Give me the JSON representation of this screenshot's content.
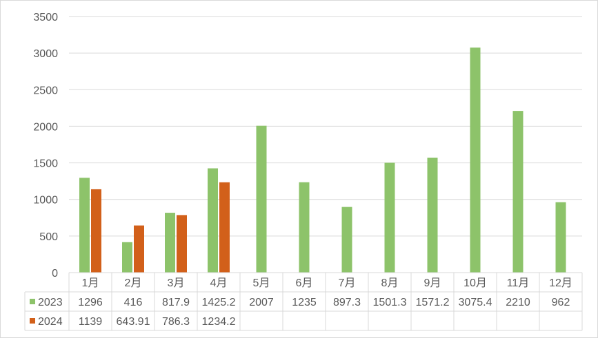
{
  "chart_data": {
    "type": "bar",
    "categories": [
      "1月",
      "2月",
      "3月",
      "4月",
      "5月",
      "6月",
      "7月",
      "8月",
      "9月",
      "10月",
      "11月",
      "12月"
    ],
    "series": [
      {
        "name": "2023",
        "color": "#8dc36a",
        "values": [
          1296,
          416,
          817.9,
          1425.2,
          2007,
          1235,
          897.3,
          1501.3,
          1571.2,
          3075.4,
          2210,
          962
        ],
        "labels": [
          "1296",
          "416",
          "817.9",
          "1425.2",
          "2007",
          "1235",
          "897.3",
          "1501.3",
          "1571.2",
          "3075.4",
          "2210",
          "962"
        ]
      },
      {
        "name": "2024",
        "color": "#d2601a",
        "values": [
          1139,
          643.91,
          786.3,
          1234.2,
          null,
          null,
          null,
          null,
          null,
          null,
          null,
          null
        ],
        "labels": [
          "1139",
          "643.91",
          "786.3",
          "1234.2",
          "",
          "",
          "",
          "",
          "",
          "",
          "",
          ""
        ]
      }
    ],
    "ylim": [
      0,
      3500
    ],
    "yticks": [
      0,
      500,
      1000,
      1500,
      2000,
      2500,
      3000,
      3500
    ],
    "grid": true,
    "legend": "data-table"
  }
}
